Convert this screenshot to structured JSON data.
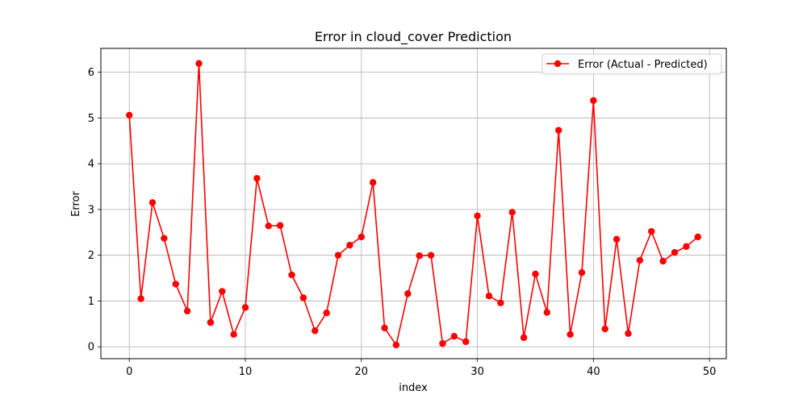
{
  "chart_data": {
    "type": "line",
    "title": "Error in cloud_cover Prediction",
    "xlabel": "index",
    "ylabel": "Error",
    "xlim": [
      -2.45,
      51.45
    ],
    "ylim": [
      -0.26,
      6.52
    ],
    "xticks": [
      0,
      10,
      20,
      30,
      40,
      50
    ],
    "yticks": [
      0,
      1,
      2,
      3,
      4,
      5,
      6
    ],
    "grid": true,
    "legend_position": "top-right",
    "series": [
      {
        "name": "Error (Actual - Predicted)",
        "color": "#ff0000",
        "marker": "circle",
        "x": [
          0,
          1,
          2,
          3,
          4,
          5,
          6,
          7,
          8,
          9,
          10,
          11,
          12,
          13,
          14,
          15,
          16,
          17,
          18,
          19,
          20,
          21,
          22,
          23,
          24,
          25,
          26,
          27,
          28,
          29,
          30,
          31,
          32,
          33,
          34,
          35,
          36,
          37,
          38,
          39,
          40,
          41,
          42,
          43,
          44,
          45,
          46,
          47,
          48,
          49
        ],
        "y": [
          5.06,
          1.05,
          3.15,
          2.37,
          1.37,
          0.78,
          6.19,
          0.53,
          1.21,
          0.27,
          0.86,
          3.68,
          2.64,
          2.65,
          1.57,
          1.07,
          0.35,
          0.74,
          2.0,
          2.22,
          2.4,
          3.59,
          0.41,
          0.04,
          1.16,
          1.99,
          2.0,
          0.07,
          0.23,
          0.11,
          2.86,
          1.11,
          0.96,
          2.94,
          0.2,
          1.59,
          0.75,
          4.73,
          0.27,
          1.62,
          5.38,
          0.39,
          2.35,
          0.29,
          1.89,
          2.52,
          1.87,
          2.06,
          2.19,
          2.4
        ]
      }
    ]
  }
}
